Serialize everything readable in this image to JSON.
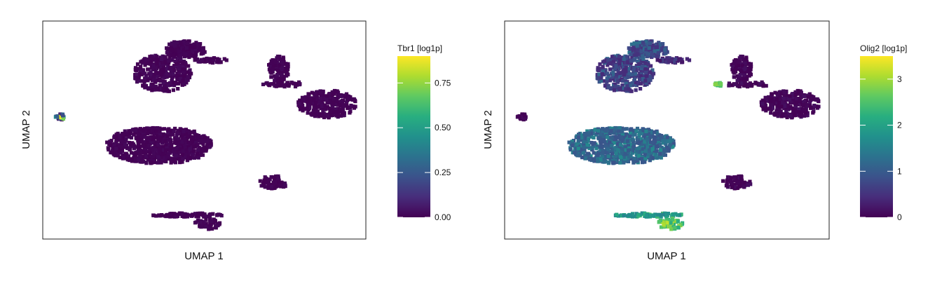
{
  "colorscale": [
    "#440154",
    "#472d7b",
    "#3b528b",
    "#2c728e",
    "#21918c",
    "#28ae80",
    "#5ec962",
    "#addc30",
    "#fde725"
  ],
  "chart_data": [
    {
      "type": "scatter",
      "xlabel": "UMAP 1",
      "ylabel": "UMAP 2",
      "colorbar": {
        "title": "Tbr1 [log1p]",
        "range": [
          0,
          0.9
        ],
        "ticks": [
          0,
          0.25,
          0.5,
          0.75
        ],
        "tick_labels": [
          "0.00",
          "0.25",
          "0.50",
          "0.75"
        ]
      },
      "xlim": [
        0,
        100
      ],
      "ylim": [
        0,
        100
      ],
      "clusters": [
        {
          "x": 5.5,
          "y": 56,
          "rx": 1.6,
          "ry": 1.4,
          "n": 30,
          "base": 0.02,
          "spread": 0.88,
          "hole": 0
        },
        {
          "x": 36,
          "y": 43,
          "rx": 16.5,
          "ry": 8.5,
          "n": 850,
          "base": 0.0,
          "spread": 0.02,
          "hole": 0.15
        },
        {
          "x": 37,
          "y": 76,
          "rx": 9,
          "ry": 8.5,
          "n": 360,
          "base": 0.0,
          "spread": 0.03,
          "hole": 0.04
        },
        {
          "x": 44,
          "y": 87,
          "rx": 6.5,
          "ry": 4,
          "n": 170,
          "base": 0.0,
          "spread": 0.02,
          "hole": 0.04
        },
        {
          "x": 88,
          "y": 62,
          "rx": 9,
          "ry": 6.5,
          "n": 300,
          "base": 0.0,
          "spread": 0.02,
          "hole": 0.03
        },
        {
          "x": 73,
          "y": 78,
          "rx": 3.2,
          "ry": 6,
          "n": 100,
          "base": 0.0,
          "spread": 0.02,
          "hole": 0.1
        },
        {
          "x": 75,
          "y": 71,
          "rx": 7,
          "ry": 1.2,
          "n": 50,
          "base": 0.0,
          "spread": 0.02,
          "hole": 0
        },
        {
          "x": 71.5,
          "y": 26,
          "rx": 4.5,
          "ry": 3,
          "n": 70,
          "base": 0.0,
          "spread": 0.02,
          "hole": 0.05
        },
        {
          "x": 45,
          "y": 11,
          "rx": 11,
          "ry": 0.9,
          "n": 80,
          "base": 0.0,
          "spread": 0.02,
          "hole": 0
        },
        {
          "x": 51,
          "y": 7,
          "rx": 4,
          "ry": 2.5,
          "n": 50,
          "base": 0.0,
          "spread": 0.02,
          "hole": 0
        },
        {
          "x": 52,
          "y": 82,
          "rx": 5,
          "ry": 1.2,
          "n": 40,
          "base": 0.0,
          "spread": 0.02,
          "hole": 0
        }
      ]
    },
    {
      "type": "scatter",
      "xlabel": "UMAP 1",
      "ylabel": "UMAP 2",
      "colorbar": {
        "title": "Olig2 [log1p]",
        "range": [
          0,
          3.5
        ],
        "ticks": [
          0,
          1,
          2,
          3
        ],
        "tick_labels": [
          "0",
          "1",
          "2",
          "3"
        ]
      },
      "xlim": [
        0,
        100
      ],
      "ylim": [
        0,
        100
      ],
      "clusters": [
        {
          "x": 5.5,
          "y": 56,
          "rx": 1.6,
          "ry": 1.4,
          "n": 30,
          "base": 0.0,
          "spread": 0.1,
          "hole": 0
        },
        {
          "x": 36,
          "y": 43,
          "rx": 16.5,
          "ry": 8.5,
          "n": 850,
          "base": 0.9,
          "spread": 0.8,
          "hole": 0.15
        },
        {
          "x": 37,
          "y": 76,
          "rx": 9,
          "ry": 8.5,
          "n": 360,
          "base": 0.4,
          "spread": 0.8,
          "hole": 0.04
        },
        {
          "x": 44,
          "y": 87,
          "rx": 6.5,
          "ry": 4,
          "n": 170,
          "base": 0.5,
          "spread": 0.9,
          "hole": 0.04
        },
        {
          "x": 88,
          "y": 62,
          "rx": 9,
          "ry": 6.5,
          "n": 300,
          "base": 0.0,
          "spread": 0.15,
          "hole": 0.03
        },
        {
          "x": 73,
          "y": 78,
          "rx": 3.2,
          "ry": 6,
          "n": 100,
          "base": 0.0,
          "spread": 0.15,
          "hole": 0.1
        },
        {
          "x": 66,
          "y": 71,
          "rx": 1.2,
          "ry": 0.9,
          "n": 15,
          "base": 2.4,
          "spread": 0.5,
          "hole": 0
        },
        {
          "x": 75,
          "y": 71,
          "rx": 7,
          "ry": 1.2,
          "n": 50,
          "base": 0.0,
          "spread": 0.15,
          "hole": 0
        },
        {
          "x": 71.5,
          "y": 26,
          "rx": 4.5,
          "ry": 3,
          "n": 70,
          "base": 0.0,
          "spread": 0.15,
          "hole": 0.05
        },
        {
          "x": 45,
          "y": 11,
          "rx": 11,
          "ry": 0.9,
          "n": 80,
          "base": 1.6,
          "spread": 1.0,
          "hole": 0
        },
        {
          "x": 51,
          "y": 7,
          "rx": 4,
          "ry": 2.5,
          "n": 50,
          "base": 2.2,
          "spread": 1.0,
          "hole": 0
        },
        {
          "x": 52,
          "y": 82,
          "rx": 5,
          "ry": 1.2,
          "n": 40,
          "base": 0.2,
          "spread": 0.5,
          "hole": 0
        }
      ]
    }
  ]
}
